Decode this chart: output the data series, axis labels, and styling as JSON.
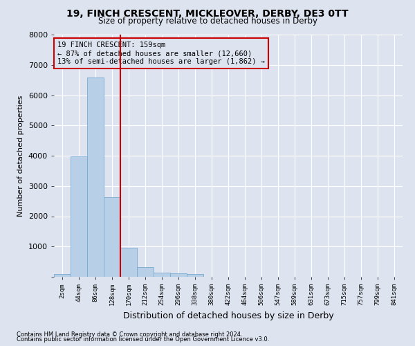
{
  "title_line1": "19, FINCH CRESCENT, MICKLEOVER, DERBY, DE3 0TT",
  "title_line2": "Size of property relative to detached houses in Derby",
  "xlabel": "Distribution of detached houses by size in Derby",
  "ylabel": "Number of detached properties",
  "bar_color": "#b8cfe8",
  "bar_edge_color": "#7aaad0",
  "vline_color": "#cc0000",
  "annotation_title": "19 FINCH CRESCENT: 159sqm",
  "annotation_line1": "← 87% of detached houses are smaller (12,660)",
  "annotation_line2": "13% of semi-detached houses are larger (1,862) →",
  "annotation_box_color": "#cc0000",
  "background_color": "#dde4f0",
  "grid_color": "#ffffff",
  "categories": [
    "2sqm",
    "44sqm",
    "86sqm",
    "128sqm",
    "170sqm",
    "212sqm",
    "254sqm",
    "296sqm",
    "338sqm",
    "380sqm",
    "422sqm",
    "464sqm",
    "506sqm",
    "547sqm",
    "589sqm",
    "631sqm",
    "673sqm",
    "715sqm",
    "757sqm",
    "799sqm",
    "841sqm"
  ],
  "values": [
    100,
    3980,
    6580,
    2620,
    960,
    310,
    130,
    110,
    90,
    0,
    0,
    0,
    0,
    0,
    0,
    0,
    0,
    0,
    0,
    0,
    0
  ],
  "ylim": [
    0,
    8000
  ],
  "yticks": [
    0,
    1000,
    2000,
    3000,
    4000,
    5000,
    6000,
    7000,
    8000
  ],
  "vline_bin": 3.5,
  "footnote1": "Contains HM Land Registry data © Crown copyright and database right 2024.",
  "footnote2": "Contains public sector information licensed under the Open Government Licence v3.0."
}
